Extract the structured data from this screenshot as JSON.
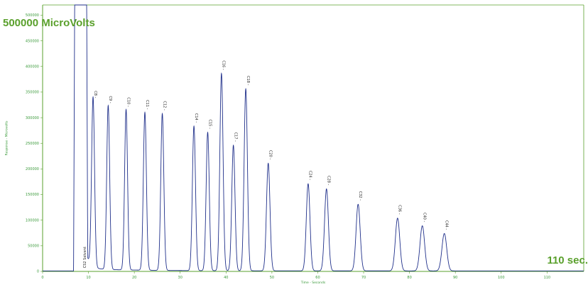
{
  "chart_data": {
    "type": "line",
    "title": "",
    "xlabel": "Time - Seconds",
    "ylabel": "Response - Microvolts",
    "xlim": [
      0,
      118
    ],
    "ylim": [
      0,
      520000
    ],
    "xticks": [
      0,
      10,
      20,
      30,
      40,
      50,
      60,
      70,
      80,
      90,
      100,
      110
    ],
    "yticks": [
      0,
      50000,
      100000,
      150000,
      200000,
      250000,
      300000,
      350000,
      400000,
      450000,
      500000
    ],
    "baseline": 1000,
    "grid": false,
    "annotations": {
      "y_scale": "500000 MicroVolts",
      "x_span": "110 sec."
    },
    "solvent": {
      "label": "CS2 Solvent",
      "x": [
        7.0,
        9.6
      ],
      "height": 520000
    },
    "peaks": [
      {
        "label": "C8",
        "x": 11.0,
        "height": 330000,
        "width": 0.32
      },
      {
        "label": "C9",
        "x": 14.3,
        "height": 320000,
        "width": 0.32
      },
      {
        "label": "C10",
        "x": 18.2,
        "height": 313000,
        "width": 0.32
      },
      {
        "label": "C11",
        "x": 22.3,
        "height": 308000,
        "width": 0.33
      },
      {
        "label": "C12",
        "x": 26.1,
        "height": 306000,
        "width": 0.33
      },
      {
        "label": "C14",
        "x": 33.0,
        "height": 282000,
        "width": 0.34
      },
      {
        "label": "C15",
        "x": 36.0,
        "height": 270000,
        "width": 0.34
      },
      {
        "label": "C16",
        "x": 39.0,
        "height": 385000,
        "width": 0.35
      },
      {
        "label": "C17",
        "x": 41.6,
        "height": 245000,
        "width": 0.35
      },
      {
        "label": "C18",
        "x": 44.3,
        "height": 355000,
        "width": 0.36
      },
      {
        "label": "C20",
        "x": 49.2,
        "height": 210000,
        "width": 0.38
      },
      {
        "label": "C24",
        "x": 57.9,
        "height": 170000,
        "width": 0.4
      },
      {
        "label": "C28",
        "x": 61.9,
        "height": 160000,
        "width": 0.42
      },
      {
        "label": "C32",
        "x": 68.8,
        "height": 130000,
        "width": 0.45
      },
      {
        "label": "C36",
        "x": 77.4,
        "height": 103000,
        "width": 0.48
      },
      {
        "label": "C40",
        "x": 82.8,
        "height": 88000,
        "width": 0.5
      },
      {
        "label": "C44",
        "x": 87.6,
        "height": 73000,
        "width": 0.52
      }
    ],
    "colors": {
      "axis": "#5aa02c",
      "trace": "#1f2f8a",
      "tick_text": "#3a9a3a",
      "peak_text": "#222222",
      "overlay_text": "#5aa02c"
    }
  }
}
